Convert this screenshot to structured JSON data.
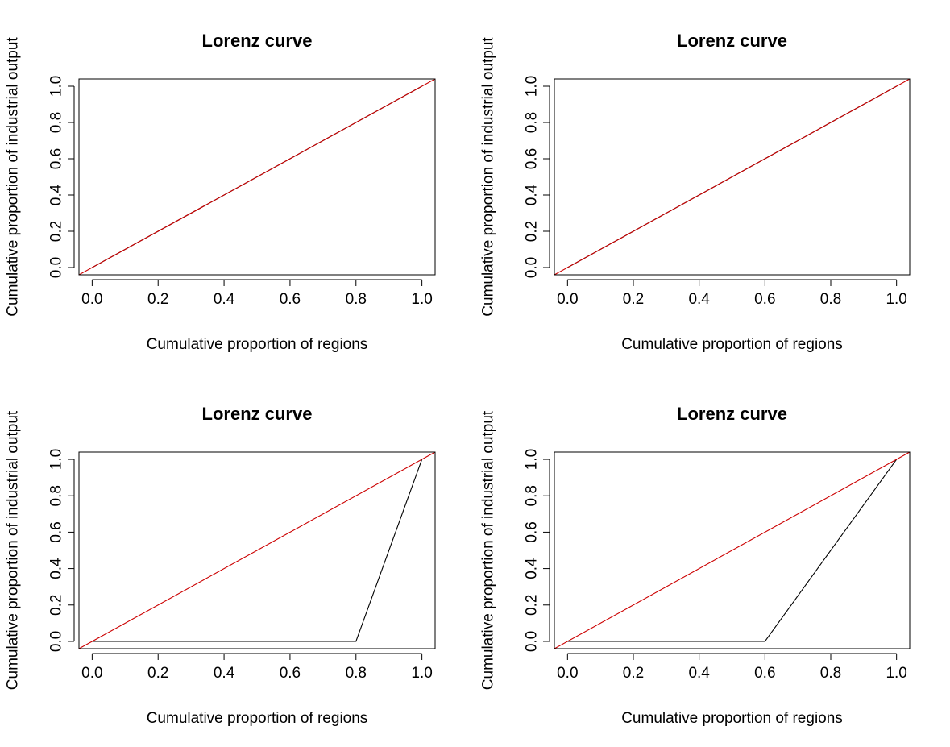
{
  "chart_data": [
    {
      "type": "line",
      "title": "Lorenz curve",
      "xlabel": "Cumulative proportion of regions",
      "ylabel": "Cumulative proportion of industrial output",
      "xlim": [
        -0.04,
        1.04
      ],
      "ylim": [
        -0.04,
        1.04
      ],
      "xticks": [
        "0.0",
        "0.2",
        "0.4",
        "0.6",
        "0.8",
        "1.0"
      ],
      "yticks": [
        "0.0",
        "0.2",
        "0.4",
        "0.6",
        "0.8",
        "1.0"
      ],
      "grid": false,
      "series": [
        {
          "color": "#000000",
          "x": [
            0,
            1
          ],
          "y": [
            0,
            1
          ]
        },
        {
          "color": "#cc0000",
          "x": [
            -0.04,
            1.04
          ],
          "y": [
            -0.04,
            1.04
          ]
        }
      ]
    },
    {
      "type": "line",
      "title": "Lorenz curve",
      "xlabel": "Cumulative proportion of regions",
      "ylabel": "Cumulative proportion of industrial output",
      "xlim": [
        -0.04,
        1.04
      ],
      "ylim": [
        -0.04,
        1.04
      ],
      "xticks": [
        "0.0",
        "0.2",
        "0.4",
        "0.6",
        "0.8",
        "1.0"
      ],
      "yticks": [
        "0.0",
        "0.2",
        "0.4",
        "0.6",
        "0.8",
        "1.0"
      ],
      "grid": false,
      "series": [
        {
          "color": "#000000",
          "x": [
            0,
            0.2,
            0.4,
            0.6,
            0.8,
            1.0
          ],
          "y": [
            0,
            0.2,
            0.4,
            0.6,
            0.8,
            1.0
          ]
        },
        {
          "color": "#cc0000",
          "x": [
            -0.04,
            1.04
          ],
          "y": [
            -0.04,
            1.04
          ]
        }
      ]
    },
    {
      "type": "line",
      "title": "Lorenz curve",
      "xlabel": "Cumulative proportion of regions",
      "ylabel": "Cumulative proportion of industrial output",
      "xlim": [
        -0.04,
        1.04
      ],
      "ylim": [
        -0.04,
        1.04
      ],
      "xticks": [
        "0.0",
        "0.2",
        "0.4",
        "0.6",
        "0.8",
        "1.0"
      ],
      "yticks": [
        "0.0",
        "0.2",
        "0.4",
        "0.6",
        "0.8",
        "1.0"
      ],
      "grid": false,
      "series": [
        {
          "color": "#000000",
          "x": [
            0,
            0.8,
            1.0
          ],
          "y": [
            0,
            0,
            1.0
          ]
        },
        {
          "color": "#cc0000",
          "x": [
            -0.04,
            1.04
          ],
          "y": [
            -0.04,
            1.04
          ]
        }
      ]
    },
    {
      "type": "line",
      "title": "Lorenz curve",
      "xlabel": "Cumulative proportion of regions",
      "ylabel": "Cumulative proportion of industrial output",
      "xlim": [
        -0.04,
        1.04
      ],
      "ylim": [
        -0.04,
        1.04
      ],
      "xticks": [
        "0.0",
        "0.2",
        "0.4",
        "0.6",
        "0.8",
        "1.0"
      ],
      "yticks": [
        "0.0",
        "0.2",
        "0.4",
        "0.6",
        "0.8",
        "1.0"
      ],
      "grid": false,
      "series": [
        {
          "color": "#000000",
          "x": [
            0,
            0.6,
            1.0
          ],
          "y": [
            0,
            0,
            1.0
          ]
        },
        {
          "color": "#cc0000",
          "x": [
            -0.04,
            1.04
          ],
          "y": [
            -0.04,
            1.04
          ]
        }
      ]
    }
  ]
}
